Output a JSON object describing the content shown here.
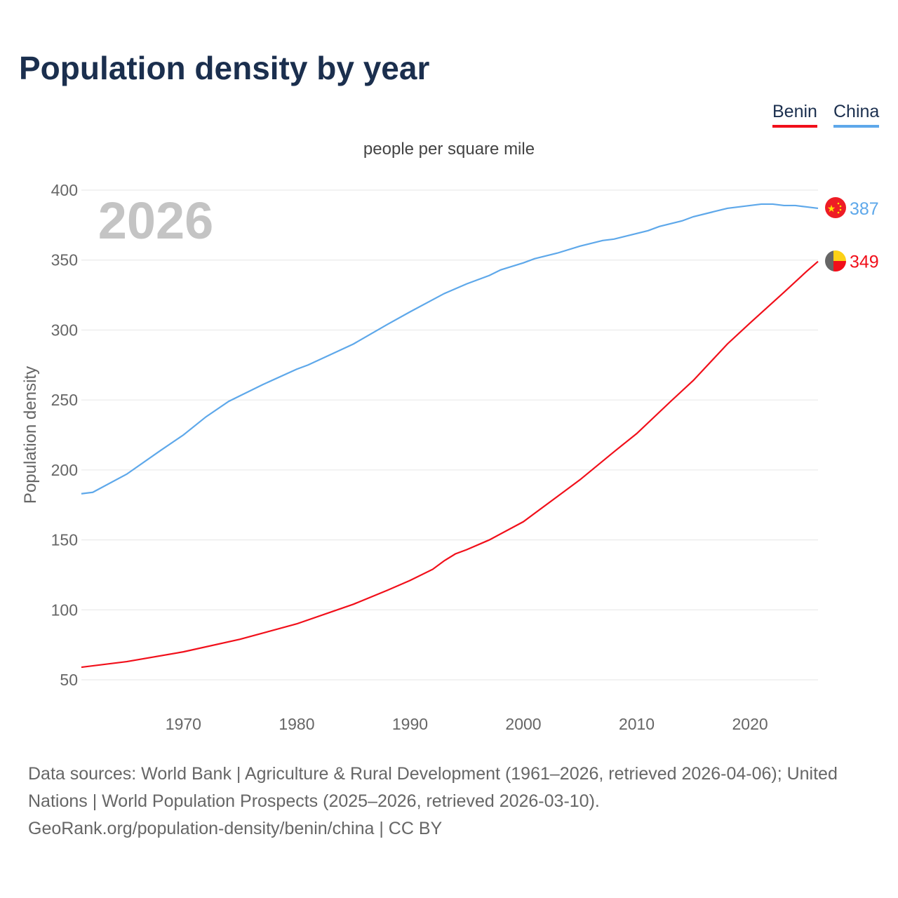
{
  "title": "Population density by year",
  "legend": [
    {
      "name": "Benin",
      "color": "#f10f1a"
    },
    {
      "name": "China",
      "color": "#5ea8ea"
    }
  ],
  "subtitle": "people per square mile",
  "year_label": "2026",
  "sources": "Data sources: World Bank | Agriculture & Rural Development (1961–2026, retrieved 2026-04-06); United Nations | World Population Prospects (2025–2026, retrieved 2026-03-10).",
  "credit": "GeoRank.org/population-density/benin/china | CC BY",
  "chart_data": {
    "type": "line",
    "title": "Population density by year",
    "subtitle": "people per square mile",
    "xlabel": "",
    "ylabel": "Population density",
    "xlim": [
      1961,
      2026
    ],
    "ylim": [
      50,
      400
    ],
    "xticks": [
      1970,
      1980,
      1990,
      2000,
      2010,
      2020
    ],
    "yticks": [
      50,
      100,
      150,
      200,
      250,
      300,
      350,
      400
    ],
    "grid": true,
    "legend_position": "top-right",
    "series": [
      {
        "name": "China",
        "color": "#5ea8ea",
        "end_label": "387",
        "x": [
          1961,
          1962,
          1965,
          1968,
          1970,
          1972,
          1974,
          1975,
          1977,
          1980,
          1981,
          1985,
          1988,
          1990,
          1993,
          1995,
          1997,
          1998,
          2000,
          2001,
          2003,
          2005,
          2007,
          2008,
          2010,
          2011,
          2012,
          2014,
          2015,
          2018,
          2020,
          2021,
          2022,
          2023,
          2024,
          2025,
          2026
        ],
        "y": [
          183,
          184,
          197,
          214,
          225,
          238,
          249,
          253,
          261,
          272,
          275,
          290,
          304,
          313,
          326,
          333,
          339,
          343,
          348,
          351,
          355,
          360,
          364,
          365,
          369,
          371,
          374,
          378,
          381,
          387,
          389,
          390,
          390,
          389,
          389,
          388,
          387
        ]
      },
      {
        "name": "Benin",
        "color": "#f10f1a",
        "end_label": "349",
        "x": [
          1961,
          1965,
          1970,
          1975,
          1980,
          1985,
          1988,
          1990,
          1992,
          1993,
          1994,
          1995,
          1997,
          2000,
          2003,
          2005,
          2008,
          2010,
          2013,
          2015,
          2018,
          2020,
          2023,
          2025,
          2026
        ],
        "y": [
          59,
          63,
          70,
          79,
          90,
          104,
          114,
          121,
          129,
          135,
          140,
          143,
          150,
          163,
          181,
          193,
          213,
          226,
          249,
          264,
          290,
          305,
          327,
          342,
          349
        ]
      }
    ]
  }
}
